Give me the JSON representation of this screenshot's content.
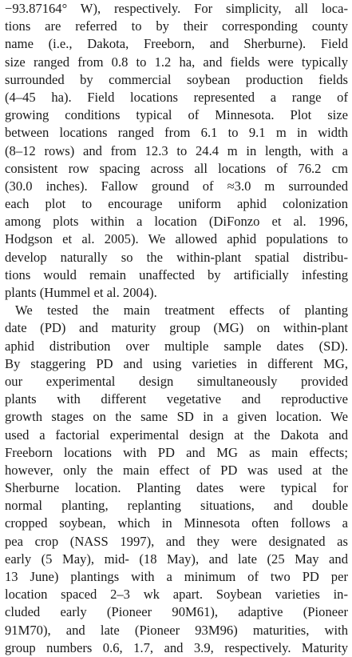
{
  "paragraphs": [
    {
      "indent": false,
      "lines": [
        "−93.87164° W), respectively. For simplicity, all loca-",
        "tions are referred to by their corresponding county",
        "name (i.e., Dakota, Freeborn, and Sherburne). Field",
        "size ranged from 0.8 to 1.2 ha, and fields were typically",
        "surrounded by commercial soybean production fields",
        "(4–45 ha). Field locations represented a range of",
        "growing conditions typical of Minnesota. Plot size",
        "between locations ranged from 6.1 to 9.1 m in width",
        "(8–12 rows) and from 12.3 to 24.4 m in length, with a",
        "consistent row spacing across all locations of 76.2 cm",
        "(30.0 inches). Fallow ground of ≈3.0 m surrounded",
        "each plot to encourage uniform aphid colonization",
        "among plots within a location (DiFonzo et al. 1996,",
        "Hodgson et al. 2005). We allowed aphid populations to",
        "develop naturally so the within-plant spatial distribu-",
        "tions would remain unaffected by artificially infesting",
        "plants (Hummel et al. 2004)."
      ]
    },
    {
      "indent": true,
      "lines": [
        "We tested the main treatment effects of planting",
        "date (PD) and maturity group (MG) on within-plant",
        "aphid distribution over multiple sample dates (SD).",
        "By staggering PD and using varieties in different MG,",
        "our experimental design simultaneously provided",
        "plants with different vegetative and reproductive",
        "growth stages on the same SD in a given location. We",
        "used a factorial experimental design at the Dakota and",
        "Freeborn locations with PD and MG as main effects;",
        "however, only the main effect of PD was used at the",
        "Sherburne location. Planting dates were typical for",
        "normal planting, replanting situations, and double",
        "cropped soybean, which in Minnesota often follows a",
        "pea crop (NASS 1997), and they were designated as",
        "early (5 May), mid- (18 May), and late (25 May and",
        "13 June) plantings with a minimum of two PD per",
        "location spaced 2–3 wk apart. Soybean varieties in-",
        "cluded early (Pioneer 90M61), adaptive (Pioneer",
        "91M70), and late (Pioneer 93M96) maturities, with",
        "group numbers 0.6, 1.7, and 3.9, respectively. Maturity"
      ]
    }
  ]
}
